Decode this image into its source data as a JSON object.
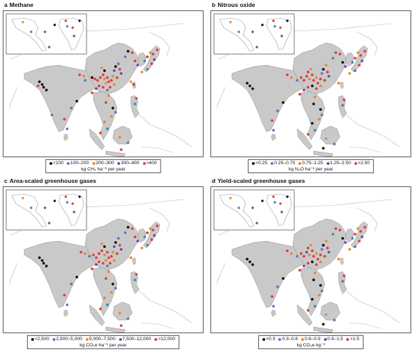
{
  "colors": {
    "land": "#c9c9c9",
    "outline": "#8a8a8a",
    "classes": [
      "#111111",
      "#4a7fc1",
      "#e8873a",
      "#6a4aa8",
      "#e23b3b"
    ]
  },
  "panels": [
    {
      "letter": "a",
      "title": "Methane",
      "legend": [
        "<100",
        "100–200",
        "200–300",
        "300–400",
        ">400"
      ],
      "unit": "kg CH₄ ha⁻¹ per year"
    },
    {
      "letter": "b",
      "title": "Nitrous oxide",
      "legend": [
        "<0.25",
        "0.25–0.75",
        "0.75–1.25",
        "1.25–2.50",
        ">2.50"
      ],
      "unit": "kg N₂O ha⁻¹ per year"
    },
    {
      "letter": "c",
      "title": "Area-scaled greenhouse gases",
      "legend": [
        "<2,500",
        "2,500–5,000",
        "5,000–7,500",
        "7,500–12,000",
        ">12,000"
      ],
      "unit": "kg CO₂e ha⁻¹ per year"
    },
    {
      "letter": "d",
      "title": "Yield-scaled greenhouse gases",
      "legend": [
        "<0.3",
        "0.3–0.6",
        "0.6–0.9",
        "0.9–1.5",
        ">1.5"
      ],
      "unit": "kg CO₂e kg⁻¹"
    }
  ]
}
